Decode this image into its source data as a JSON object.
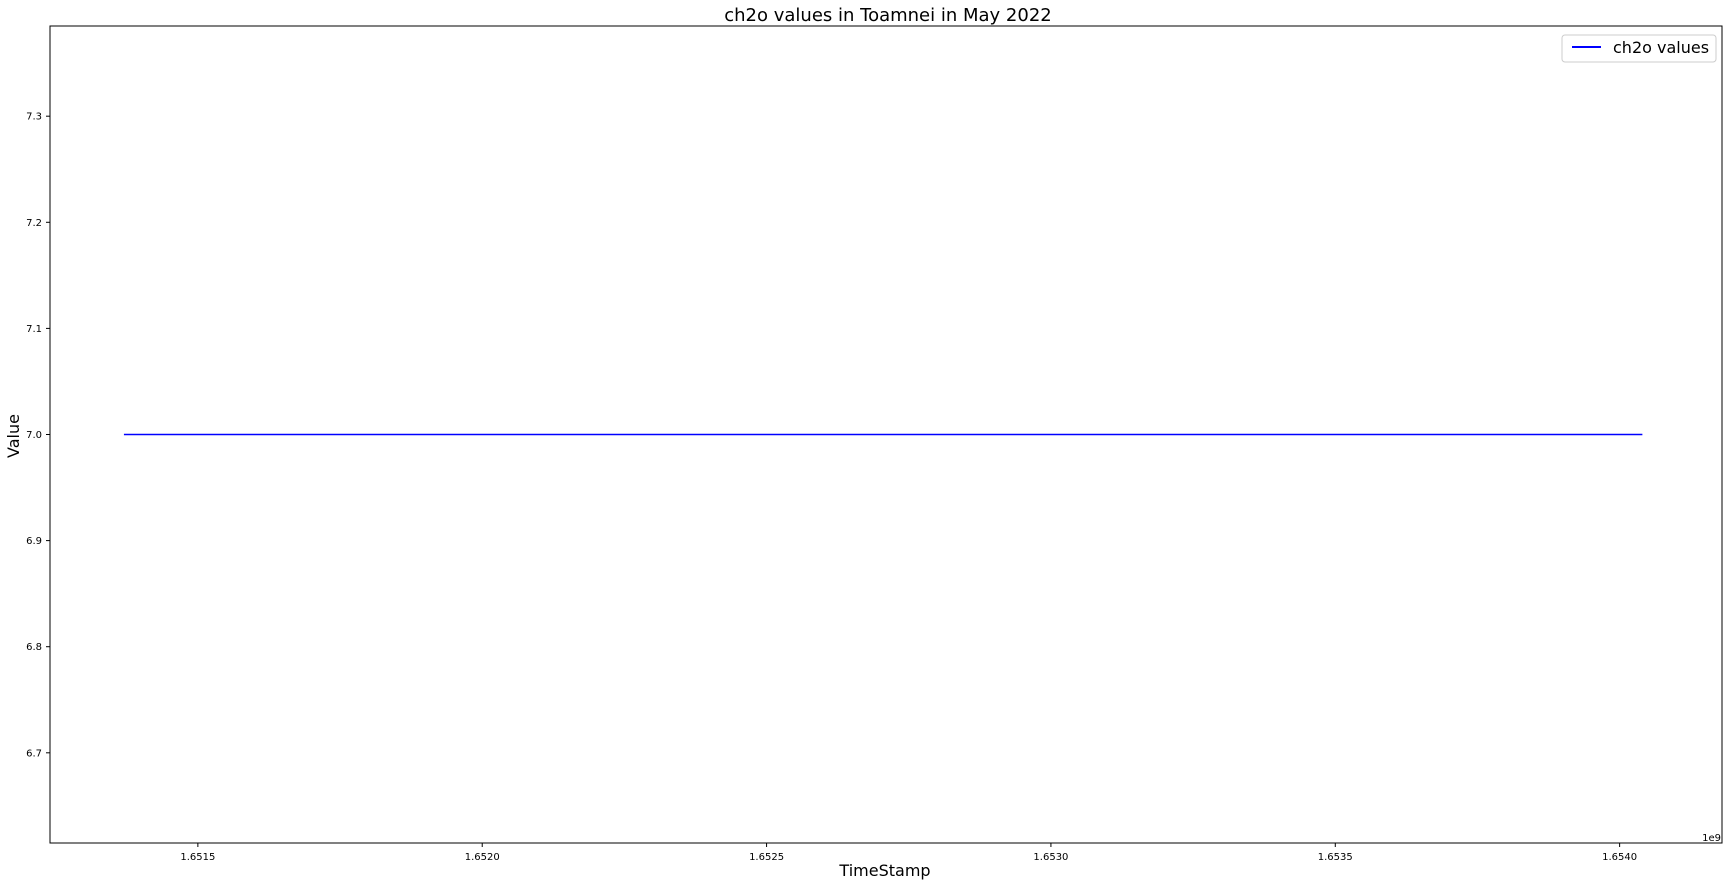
{
  "chart_data": {
    "type": "line",
    "title": "ch2o values in Toamnei in May 2022",
    "xlabel": "TimeStamp",
    "ylabel": "Value",
    "x_offset_label": "1e9",
    "xlim": [
      1.65124,
      1.65418
    ],
    "ylim": [
      6.615,
      7.385
    ],
    "x_ticks": [
      1.6515,
      1.652,
      1.6525,
      1.653,
      1.6535,
      1.654
    ],
    "x_tick_labels": [
      "1.6515",
      "1.6520",
      "1.6525",
      "1.6530",
      "1.6535",
      "1.6540"
    ],
    "y_ticks": [
      6.7,
      6.8,
      6.9,
      7.0,
      7.1,
      7.2,
      7.3
    ],
    "y_tick_labels": [
      "6.7",
      "6.8",
      "6.9",
      "7.0",
      "7.1",
      "7.2",
      "7.3"
    ],
    "grid": false,
    "legend_position": "top-right",
    "series": [
      {
        "name": "ch2o values",
        "color": "#0000ff",
        "x": [
          1.65137,
          1.65404
        ],
        "y": [
          7.0,
          7.0
        ]
      }
    ]
  }
}
